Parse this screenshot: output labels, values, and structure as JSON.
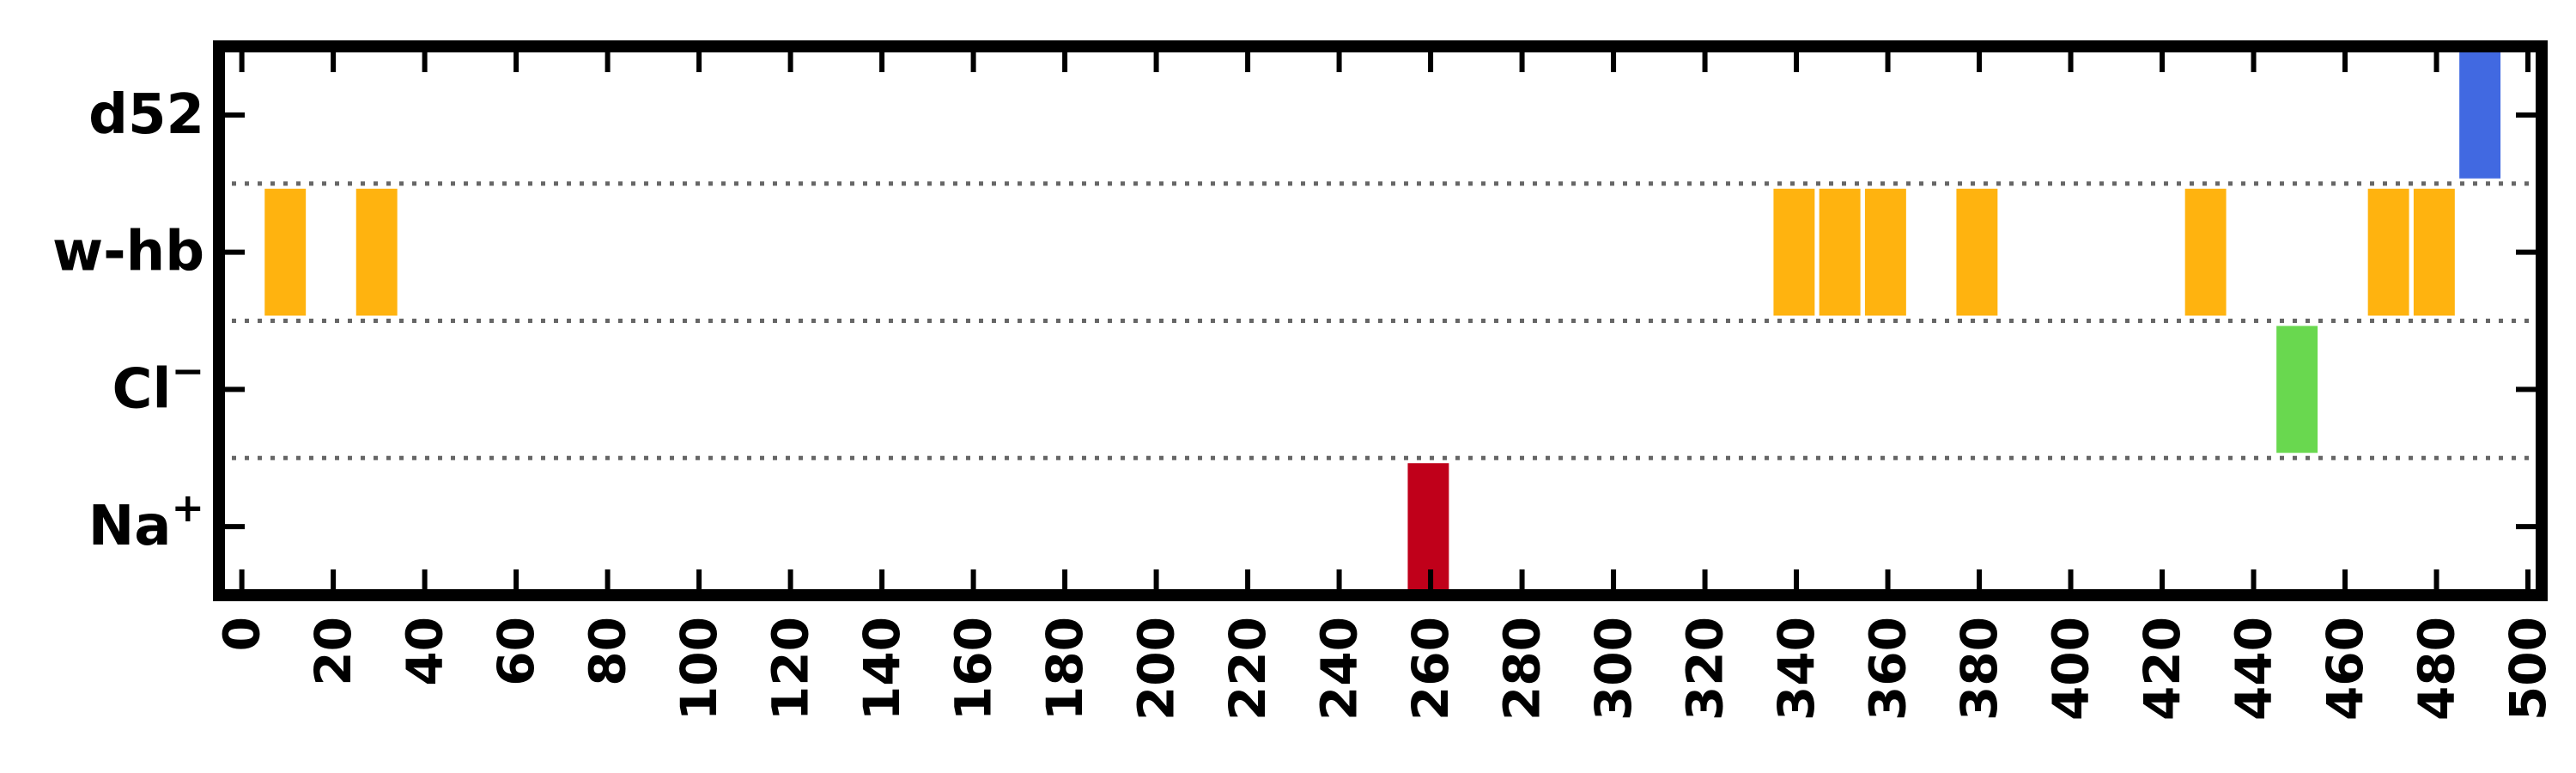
{
  "chart_data": {
    "type": "bar",
    "orientation": "horizontal-event",
    "title": "",
    "xlabel": "",
    "ylabel": "",
    "xlim": [
      -5,
      503
    ],
    "x_ticks": [
      0,
      20,
      40,
      60,
      80,
      100,
      120,
      140,
      160,
      180,
      200,
      220,
      240,
      260,
      280,
      300,
      320,
      340,
      360,
      380,
      400,
      420,
      440,
      460,
      480,
      500
    ],
    "x_tick_rotation": -90,
    "grid": "horizontal dotted separators between rows",
    "categories": [
      {
        "id": "d52",
        "label": "d52"
      },
      {
        "id": "w-hb",
        "label": "w-hb"
      },
      {
        "id": "cl",
        "label": "Cl",
        "sup": "−"
      },
      {
        "id": "na",
        "label": "Na",
        "sup": "+"
      }
    ],
    "series": [
      {
        "category": "d52",
        "color": "#4169e1",
        "events": [
          [
            485,
            494
          ]
        ]
      },
      {
        "category": "w-hb",
        "color": "#ffb30f",
        "events": [
          [
            5,
            14
          ],
          [
            25,
            34
          ],
          [
            335,
            344
          ],
          [
            345,
            354
          ],
          [
            355,
            364
          ],
          [
            375,
            384
          ],
          [
            425,
            434
          ],
          [
            465,
            474
          ],
          [
            475,
            484
          ]
        ]
      },
      {
        "category": "cl",
        "color": "#69d84f",
        "events": [
          [
            445,
            454
          ]
        ]
      },
      {
        "category": "na",
        "color": "#c0001a",
        "events": [
          [
            255,
            264
          ]
        ]
      }
    ]
  }
}
